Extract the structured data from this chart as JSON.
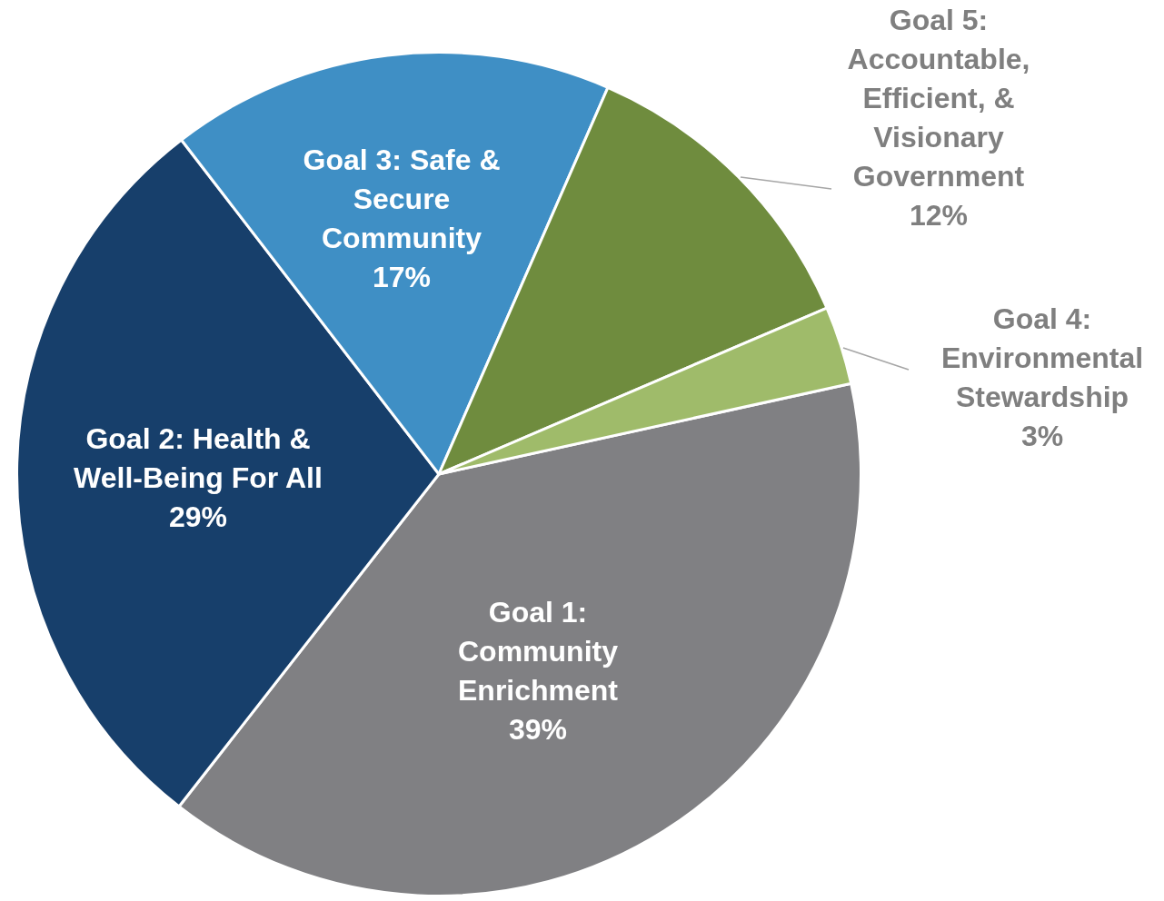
{
  "chart_data": {
    "type": "pie",
    "categories": [
      "Goal 1: Community Enrichment",
      "Goal 2: Health & Well-Being For All",
      "Goal 3: Safe & Secure Community",
      "Goal 5: Accountable, Efficient, & Visionary Government",
      "Goal 4: Environmental Stewardship"
    ],
    "values": [
      39,
      29,
      17,
      12,
      3
    ],
    "colors": [
      "#808083",
      "#173f6b",
      "#3f8fc5",
      "#6f8c3e",
      "#9fbb6a"
    ],
    "value_labels": [
      "39%",
      "29%",
      "17%",
      "12%",
      "3%"
    ],
    "legend": false
  }
}
